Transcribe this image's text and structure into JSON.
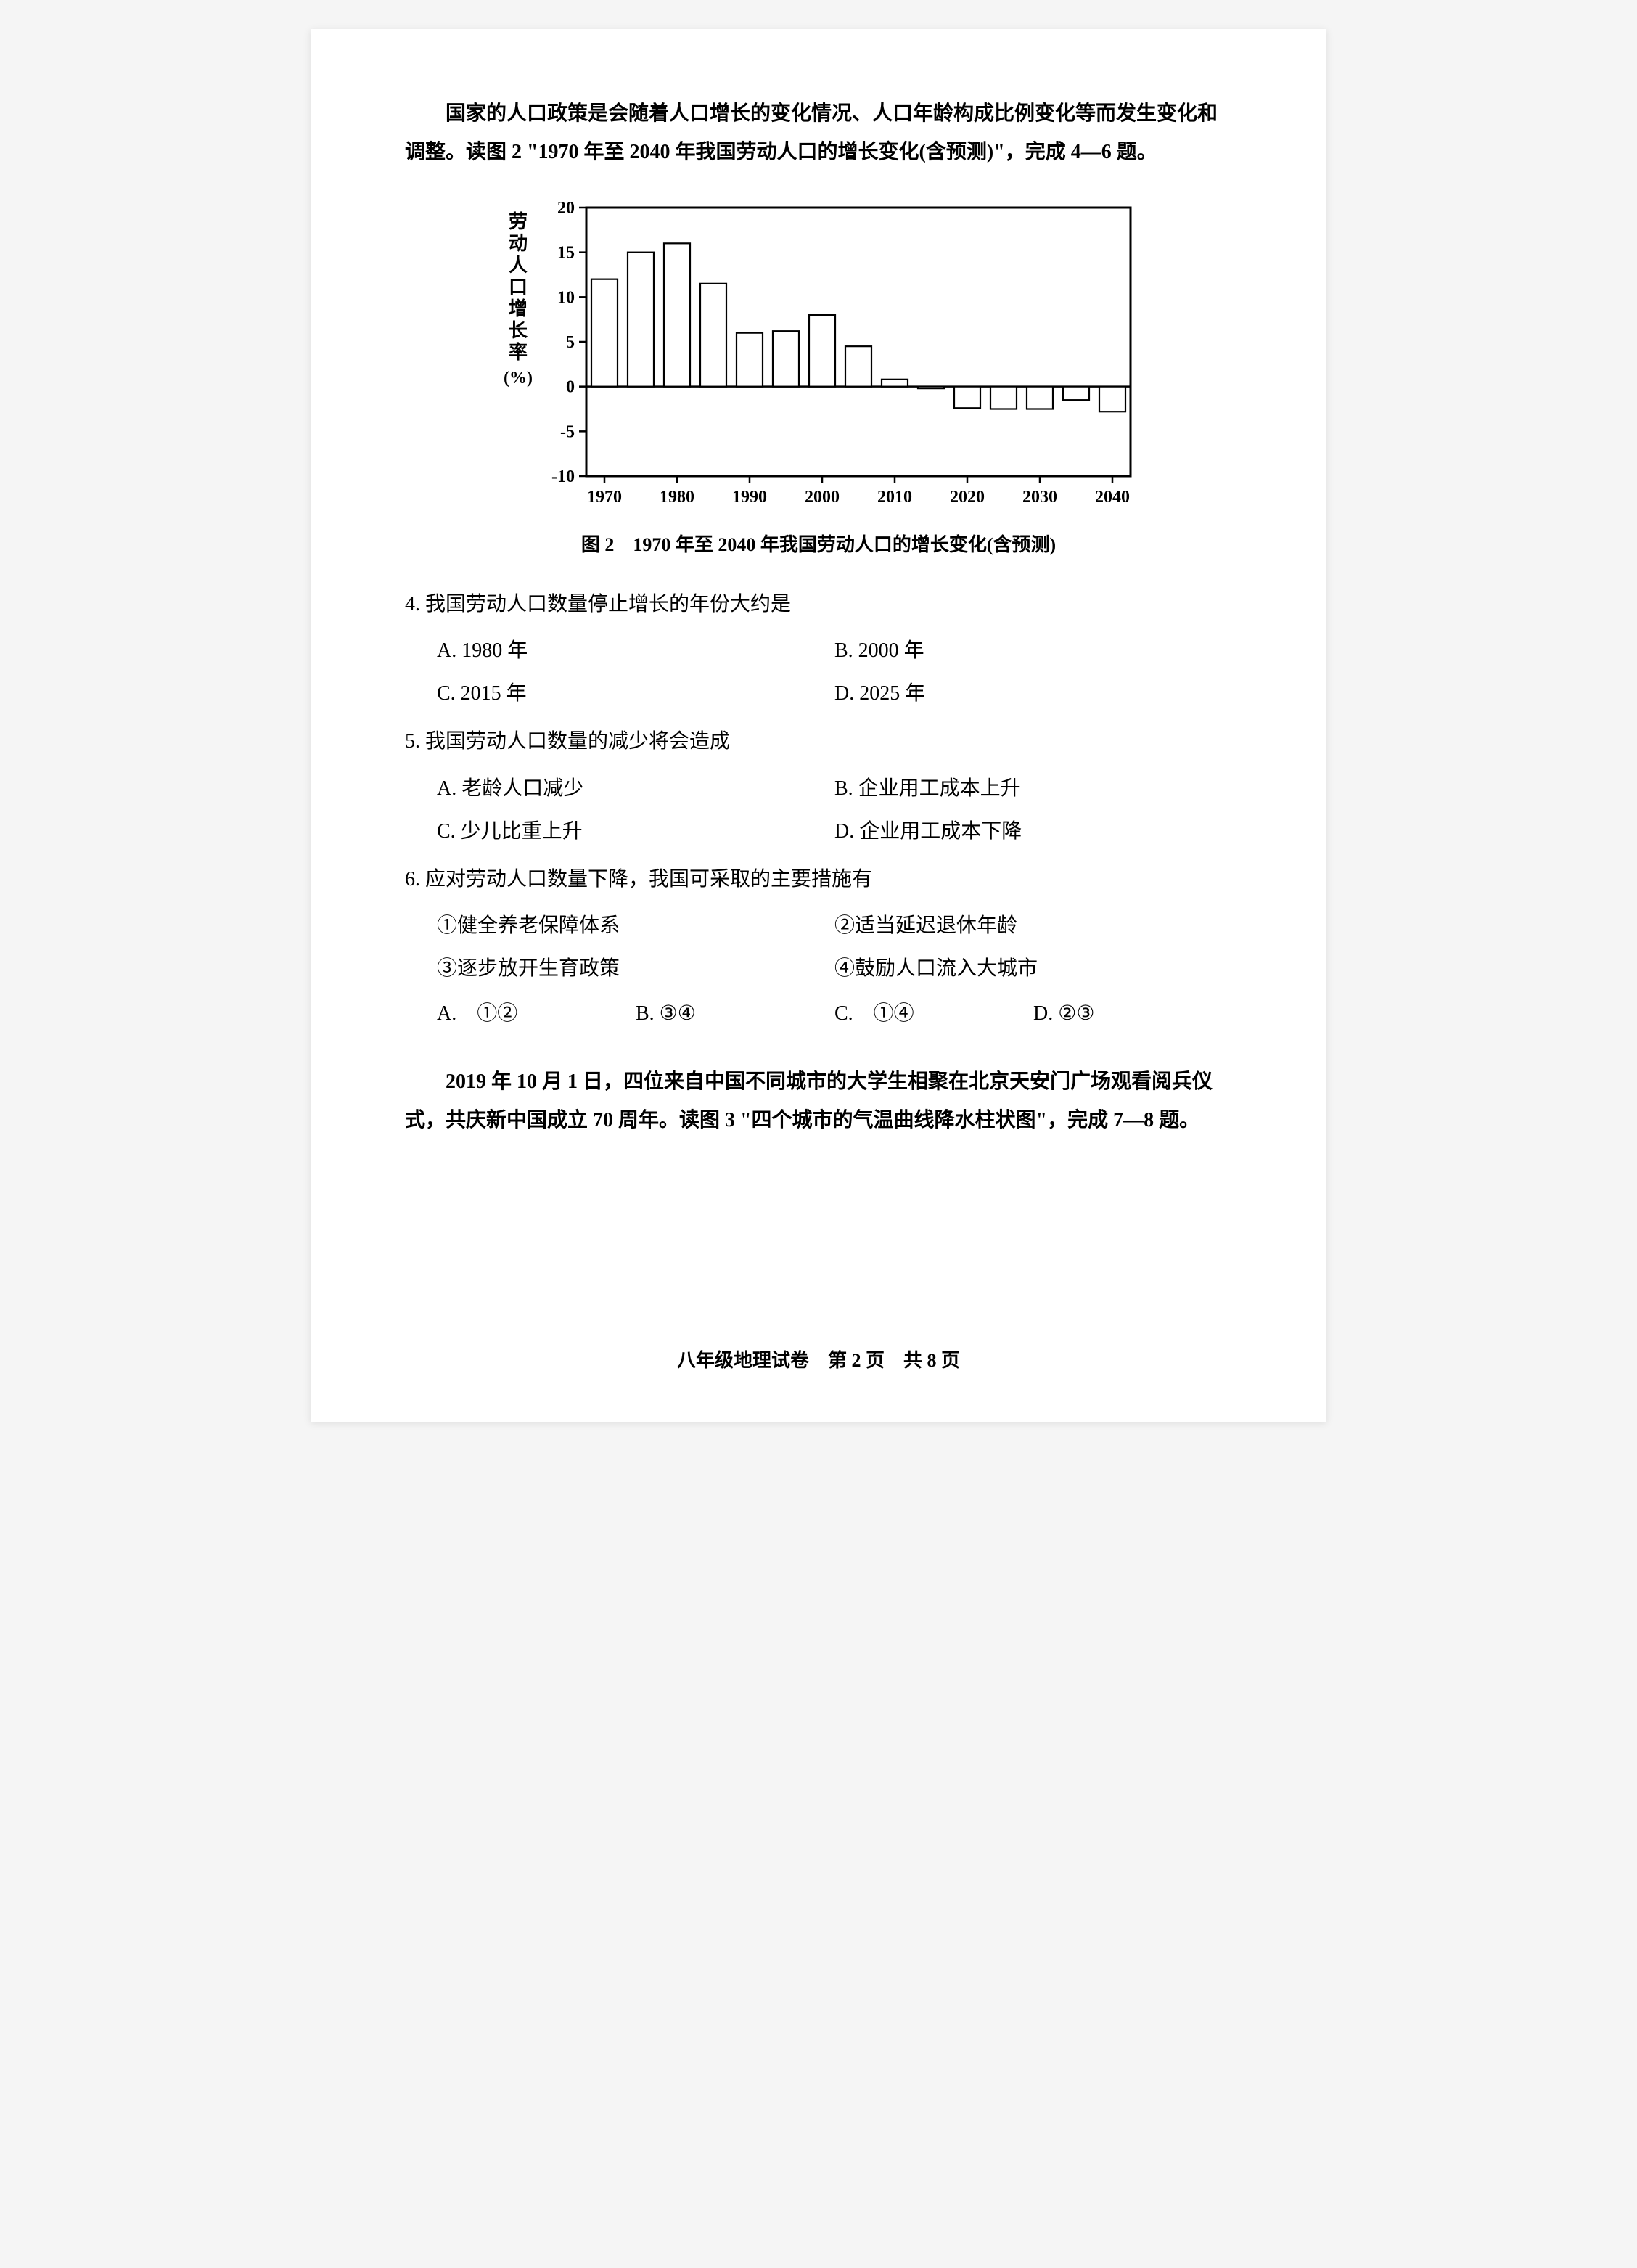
{
  "intro": "国家的人口政策是会随着人口增长的变化情况、人口年龄构成比例变化等而发生变化和调整。读图 2 \"1970 年至 2040 年我国劳动人口的增长变化(含预测)\"，完成 4—6 题。",
  "chart": {
    "type": "bar",
    "ylabel": "劳动人口增长率(%)",
    "ylabel_chars": [
      "劳",
      "动",
      "人",
      "口",
      "增",
      "长",
      "率"
    ],
    "ylabel_unit": "(%)",
    "xmin": 1970,
    "xmax": 2040,
    "ymin": -10,
    "ymax": 20,
    "ytick_step": 5,
    "xticks": [
      1970,
      1980,
      1990,
      2000,
      2010,
      2020,
      2030,
      2040
    ],
    "ytick_labels": [
      "-10",
      "-5",
      "0",
      "5",
      "10",
      "15",
      "20"
    ],
    "yticks": [
      -10,
      -5,
      0,
      5,
      10,
      15,
      20
    ],
    "bar_x": [
      1970,
      1975,
      1980,
      1985,
      1990,
      1995,
      2000,
      2005,
      2010,
      2015,
      2020,
      2025,
      2030,
      2035,
      2040
    ],
    "bar_values": [
      12.0,
      15.0,
      16.0,
      11.5,
      6.0,
      6.2,
      8.0,
      4.5,
      0.8,
      -0.2,
      -2.4,
      -2.5,
      -2.5,
      -1.5,
      -2.8
    ],
    "bar_fill": "#ffffff",
    "bar_stroke": "#000000",
    "bar_stroke_width": 2.2,
    "bar_width_ratio": 0.72,
    "grid_color": "#000000",
    "background_color": "#ffffff",
    "plot_border_width": 3,
    "caption": "图 2　1970 年至 2040 年我国劳动人口的增长变化(含预测)"
  },
  "q4": {
    "text": "4. 我国劳动人口数量停止增长的年份大约是",
    "a": "A. 1980 年",
    "b": "B. 2000 年",
    "c": "C. 2015 年",
    "d": "D. 2025 年"
  },
  "q5": {
    "text": "5. 我国劳动人口数量的减少将会造成",
    "a": "A. 老龄人口减少",
    "b": "B. 企业用工成本上升",
    "c": "C. 少儿比重上升",
    "d": "D. 企业用工成本下降"
  },
  "q6": {
    "text": "6. 应对劳动人口数量下降，我国可采取的主要措施有",
    "i1": "①健全养老保障体系",
    "i2": "②适当延迟退休年龄",
    "i3": "③逐步放开生育政策",
    "i4": "④鼓励人口流入大城市",
    "a": "A.　①②",
    "b": "B. ③④",
    "c": "C.　①④",
    "d": "D. ②③"
  },
  "intro2": "2019 年 10 月 1 日，四位来自中国不同城市的大学生相聚在北京天安门广场观看阅兵仪式，共庆新中国成立 70 周年。读图 3 \"四个城市的气温曲线降水柱状图\"，完成 7—8 题。",
  "footer": "八年级地理试卷　第 2 页　共 8 页"
}
